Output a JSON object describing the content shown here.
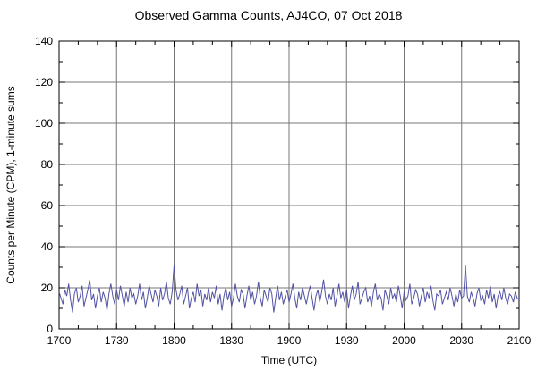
{
  "title": "Observed Gamma Counts, AJ4CO, 07 Oct 2018",
  "chart_data": {
    "type": "line",
    "title": "Observed Gamma Counts, AJ4CO, 07 Oct 2018",
    "xlabel": "Time (UTC)",
    "ylabel": "Counts per Minute (CPM), 1-minute sums",
    "x_tick_labels": [
      "1700",
      "1730",
      "1800",
      "1830",
      "1900",
      "1930",
      "2000",
      "2030",
      "2100"
    ],
    "x_tick_minutes": [
      0,
      30,
      60,
      90,
      120,
      150,
      180,
      210,
      240
    ],
    "y_ticks": [
      0,
      20,
      40,
      60,
      80,
      100,
      120,
      140
    ],
    "xlim_minutes": [
      0,
      240
    ],
    "ylim": [
      0,
      140
    ],
    "grid": true,
    "legend": "none",
    "line_color": "#5252a5",
    "grid_color": "#777777",
    "axis_color": "#000000",
    "x_start_minute": 0,
    "x_step_minutes": 1,
    "values": [
      18,
      15,
      12,
      19,
      16,
      22,
      14,
      8,
      17,
      20,
      13,
      16,
      21,
      11,
      15,
      19,
      24,
      14,
      17,
      10,
      16,
      20,
      13,
      18,
      15,
      9,
      17,
      22,
      16,
      12,
      19,
      14,
      21,
      16,
      11,
      18,
      13,
      20,
      15,
      17,
      12,
      16,
      22,
      14,
      18,
      10,
      15,
      21,
      17,
      13,
      19,
      16,
      11,
      20,
      14,
      17,
      23,
      15,
      12,
      18,
      31,
      19,
      14,
      17,
      21,
      12,
      16,
      20,
      10,
      15,
      18,
      13,
      22,
      16,
      19,
      11,
      17,
      14,
      20,
      13,
      18,
      15,
      21,
      12,
      17,
      9,
      16,
      20,
      14,
      18,
      11,
      15,
      22,
      16,
      13,
      19,
      17,
      10,
      16,
      21,
      14,
      18,
      12,
      16,
      23,
      15,
      11,
      19,
      16,
      13,
      20,
      17,
      8,
      15,
      21,
      14,
      18,
      12,
      16,
      19,
      13,
      17,
      22,
      15,
      10,
      18,
      14,
      20,
      16,
      12,
      17,
      21,
      15,
      9,
      16,
      19,
      13,
      18,
      24,
      16,
      12,
      17,
      14,
      20,
      11,
      16,
      22,
      15,
      18,
      13,
      19,
      10,
      16,
      21,
      14,
      17,
      23,
      12,
      15,
      18,
      20,
      13,
      16,
      11,
      18,
      22,
      14,
      17,
      15,
      9,
      19,
      16,
      12,
      20,
      15,
      17,
      13,
      21,
      16,
      10,
      18,
      14,
      16,
      22,
      12,
      15,
      19,
      17,
      11,
      16,
      20,
      13,
      18,
      15,
      21,
      14,
      9,
      17,
      16,
      19,
      12,
      15,
      18,
      14,
      20,
      16,
      11,
      17,
      13,
      19,
      15,
      16,
      31,
      16,
      13,
      18,
      15,
      11,
      17,
      20,
      14,
      16,
      12,
      19,
      15,
      21,
      13,
      17,
      10,
      16,
      18,
      14,
      20,
      15,
      12,
      17,
      16,
      13,
      18,
      15,
      14
    ]
  }
}
